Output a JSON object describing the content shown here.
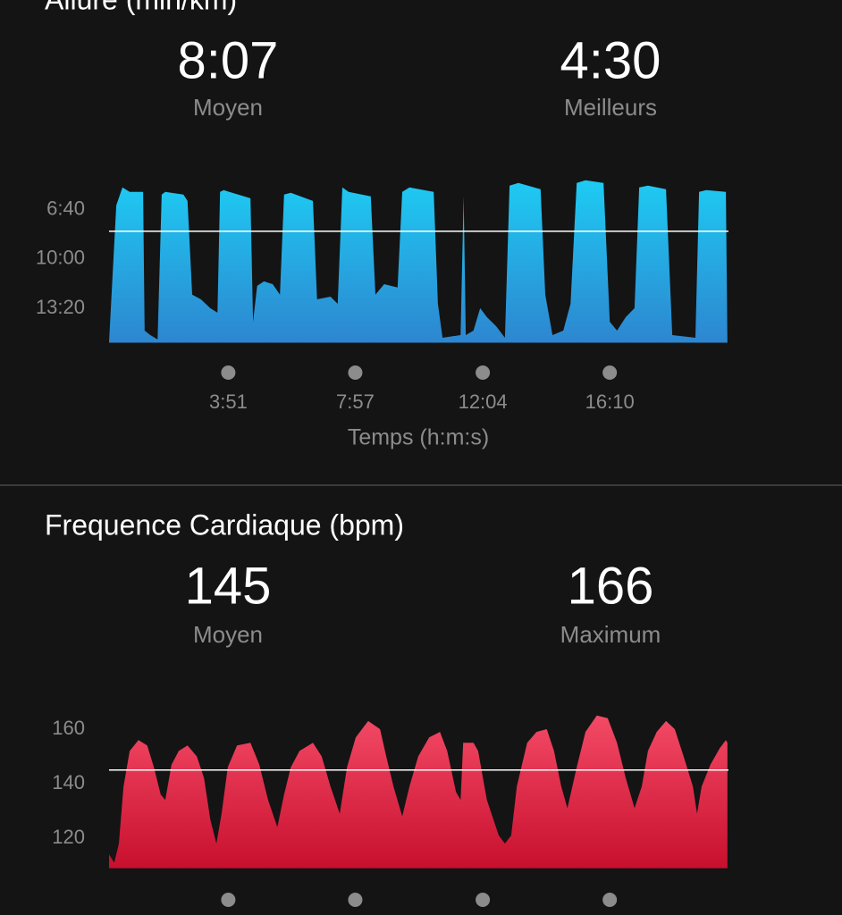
{
  "chart_data": [
    {
      "type": "area",
      "title": "Allure (min/km)",
      "stats": [
        {
          "value": "8:07",
          "label": "Moyen"
        },
        {
          "value": "4:30",
          "label": "Meilleurs"
        }
      ],
      "x_label": "Temps (h:m:s)",
      "color": [
        "#1ecbf3",
        "#2d86d0"
      ],
      "x": [
        0,
        14,
        26,
        40,
        66,
        69,
        80,
        94,
        102,
        109,
        144,
        152,
        161,
        178,
        196,
        210,
        215,
        222,
        274,
        279,
        287,
        300,
        317,
        331,
        339,
        352,
        395,
        403,
        429,
        443,
        452,
        464,
        507,
        516,
        533,
        559,
        568,
        582,
        629,
        637,
        646,
        681,
        687,
        691,
        706,
        719,
        732,
        750,
        767,
        776,
        793,
        836,
        845,
        859,
        880,
        894,
        906,
        923,
        958,
        970,
        984,
        1001,
        1018,
        1027,
        1044,
        1079,
        1091,
        1136,
        1143,
        1157,
        1195,
        1198
      ],
      "values": [
        938,
        382,
        309,
        327,
        327,
        891,
        909,
        927,
        338,
        327,
        338,
        364,
        745,
        764,
        800,
        818,
        327,
        320,
        353,
        855,
        709,
        691,
        702,
        745,
        338,
        331,
        364,
        764,
        753,
        782,
        309,
        327,
        345,
        745,
        702,
        716,
        327,
        309,
        327,
        782,
        920,
        909,
        345,
        909,
        891,
        800,
        836,
        873,
        920,
        302,
        291,
        316,
        745,
        909,
        891,
        782,
        291,
        280,
        291,
        855,
        891,
        836,
        800,
        309,
        302,
        316,
        909,
        920,
        327,
        320,
        327,
        938
      ],
      "xlim": [
        0,
        1200
      ],
      "ylim": [
        940,
        270
      ],
      "yticks": [
        {
          "value": 400,
          "label": "6:40"
        },
        {
          "value": 600,
          "label": "10:00"
        },
        {
          "value": 800,
          "label": "13:20"
        }
      ],
      "xticks": [
        {
          "value": 231,
          "label": "3:51"
        },
        {
          "value": 477,
          "label": "7:57"
        },
        {
          "value": 724,
          "label": "12:04"
        },
        {
          "value": 970,
          "label": "16:10"
        }
      ],
      "reference_line": 487
    },
    {
      "type": "area",
      "title": "Frequence Cardiaque (bpm)",
      "stats": [
        {
          "value": "145",
          "label": "Moyen"
        },
        {
          "value": "166",
          "label": "Maximum"
        }
      ],
      "color": [
        "#f34a66",
        "#c8102e"
      ],
      "x": [
        0,
        10,
        19,
        28,
        40,
        57,
        74,
        87,
        100,
        109,
        121,
        135,
        152,
        170,
        184,
        196,
        208,
        218,
        230,
        248,
        274,
        291,
        308,
        326,
        339,
        352,
        369,
        395,
        412,
        429,
        447,
        461,
        478,
        502,
        525,
        537,
        551,
        568,
        582,
        599,
        620,
        641,
        655,
        672,
        681,
        686,
        706,
        715,
        732,
        755,
        767,
        779,
        790,
        810,
        828,
        848,
        862,
        876,
        888,
        906,
        923,
        945,
        966,
        984,
        1001,
        1018,
        1032,
        1044,
        1061,
        1079,
        1096,
        1113,
        1131,
        1139,
        1148,
        1165,
        1183,
        1195,
        1198
      ],
      "values": [
        114,
        111,
        118,
        139,
        152,
        156,
        154,
        146,
        136,
        134,
        147,
        152,
        154,
        150,
        142,
        127,
        118,
        129,
        146,
        154,
        155,
        147,
        134,
        124,
        136,
        146,
        152,
        155,
        150,
        139,
        129,
        146,
        157,
        163,
        160,
        150,
        139,
        128,
        139,
        150,
        157,
        159,
        152,
        137,
        134,
        155,
        155,
        152,
        134,
        121,
        118,
        121,
        139,
        155,
        159,
        160,
        152,
        139,
        131,
        146,
        159,
        165,
        164,
        155,
        142,
        131,
        139,
        152,
        159,
        163,
        160,
        150,
        139,
        129,
        139,
        147,
        153,
        156,
        155
      ],
      "xlim": [
        0,
        1200
      ],
      "ylim": [
        109,
        168
      ],
      "yticks": [
        120,
        140,
        160
      ],
      "xticks": [
        231,
        477,
        724,
        970
      ],
      "reference_line": 145
    }
  ]
}
